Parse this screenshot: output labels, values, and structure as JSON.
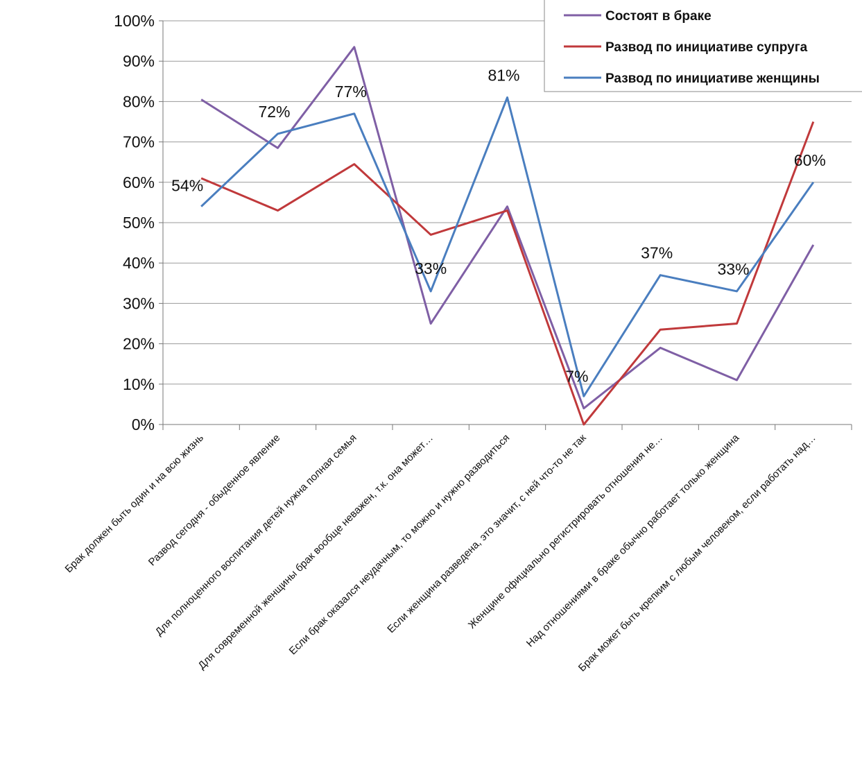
{
  "chart_data": {
    "type": "line",
    "categories": [
      "Брак должен быть один и на всю жизнь",
      "Развод сегодня - обыденное явление",
      "Для полноценного воспитания детей нужна полная семья",
      "Для современной женщины брак вообще неважен, т.к. она может…",
      "Если брак оказался неудачным, то можно и нужно разводиться",
      "Если женщина разведена, это значит, с ней что-то не так",
      "Женщине официально регистрировать отношения не…",
      "Над отношениями в браке обычно работает только женщина",
      "Брак может быть крепким с любым человеком, если работать над…"
    ],
    "series": [
      {
        "name": "Состоят в браке",
        "color": "#7f5fa5",
        "values": [
          80.5,
          68.5,
          93.5,
          25,
          54,
          4,
          19,
          11,
          44.5
        ]
      },
      {
        "name": "Развод по инициативе супруга",
        "color": "#c0393b",
        "values": [
          61,
          53,
          64.5,
          47,
          53,
          0,
          23.5,
          25,
          75
        ]
      },
      {
        "name": "Развод по инициативе женщины",
        "color": "#4a7ebf",
        "values": [
          54,
          72,
          77,
          33,
          81,
          7,
          37,
          33,
          60
        ]
      }
    ],
    "data_labels": [
      "54%",
      "72%",
      "77%",
      "33%",
      "81%",
      "7%",
      "37%",
      "33%",
      "60%"
    ],
    "y_ticks": [
      "0%",
      "10%",
      "20%",
      "30%",
      "40%",
      "50%",
      "60%",
      "70%",
      "80%",
      "90%",
      "100%"
    ],
    "ylim": [
      0,
      100
    ],
    "grid": true,
    "legend_position": "top-right"
  }
}
